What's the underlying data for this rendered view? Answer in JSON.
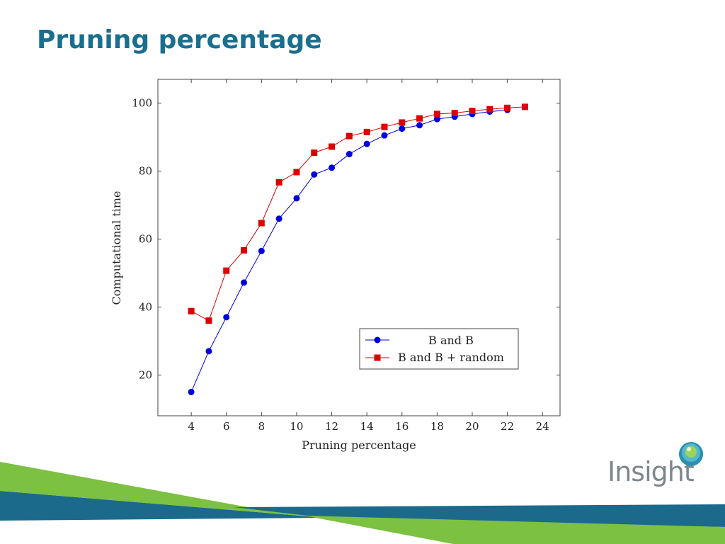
{
  "slide": {
    "title": "Pruning percentage",
    "logo_text": "Insight",
    "colors": {
      "title": "#1a6e8e",
      "band_blue": "#1b6a8c",
      "band_green": "#7cc142",
      "logo_gray": "#7c878c"
    }
  },
  "chart_data": {
    "type": "line",
    "title": "",
    "xlabel": "Pruning percentage",
    "ylabel": "Computational time",
    "xlim": [
      2.1,
      25
    ],
    "ylim": [
      8,
      107
    ],
    "xticks": [
      4,
      6,
      8,
      10,
      12,
      14,
      16,
      18,
      20,
      22,
      24
    ],
    "yticks": [
      20,
      40,
      60,
      80,
      100
    ],
    "legend_position": "bottom-right",
    "grid": false,
    "series": [
      {
        "name": "B and B",
        "color": "#0000dd",
        "marker": "circle",
        "x": [
          4,
          5,
          6,
          7,
          8,
          9,
          10,
          11,
          12,
          13,
          14,
          15,
          16,
          17,
          18,
          19,
          20,
          21,
          22
        ],
        "y": [
          15,
          27,
          37,
          47.2,
          56.5,
          66,
          72,
          79,
          81,
          85,
          88,
          90.5,
          92.5,
          93.5,
          95.3,
          96,
          96.8,
          97.5,
          98
        ]
      },
      {
        "name": "B and B + random",
        "color": "#dd0000",
        "marker": "square",
        "x": [
          4,
          5,
          6,
          7,
          8,
          9,
          10,
          11,
          12,
          13,
          14,
          15,
          16,
          17,
          18,
          19,
          20,
          21,
          22,
          23
        ],
        "y": [
          38.8,
          36,
          50.7,
          56.7,
          64.7,
          76.7,
          79.7,
          85.4,
          87.2,
          90.3,
          91.5,
          93,
          94.3,
          95.5,
          96.8,
          97.1,
          97.7,
          98.2,
          98.6,
          98.9
        ]
      }
    ]
  }
}
